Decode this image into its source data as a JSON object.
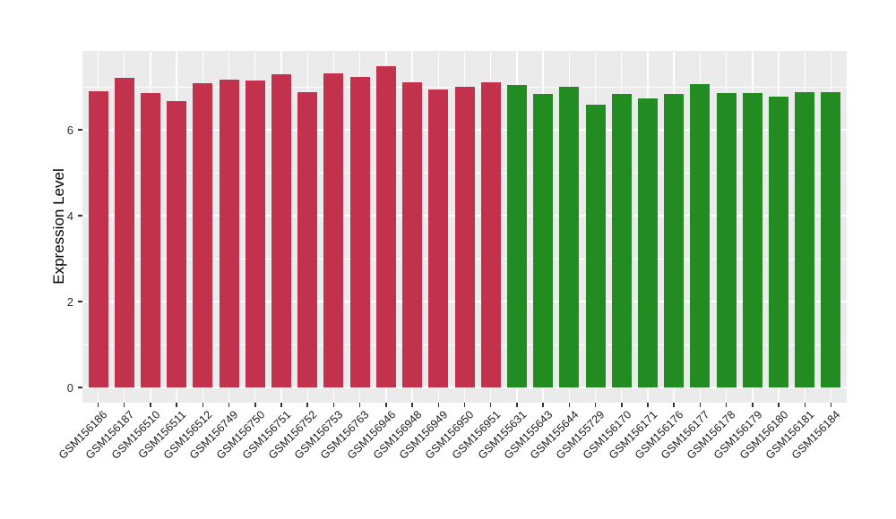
{
  "chart_data": {
    "type": "bar",
    "title": "",
    "xlabel": "",
    "ylabel": "Expression Level",
    "ylim": [
      0,
      7.9
    ],
    "yticks": [
      0,
      2,
      4,
      6
    ],
    "yticks_minor": [
      1,
      3,
      5,
      7
    ],
    "grid": true,
    "legend": "none",
    "categories": [
      "GSM156186",
      "GSM156187",
      "GSM156510",
      "GSM156511",
      "GSM156512",
      "GSM156749",
      "GSM156750",
      "GSM156751",
      "GSM156752",
      "GSM156753",
      "GSM156763",
      "GSM156946",
      "GSM156948",
      "GSM156949",
      "GSM156950",
      "GSM156951",
      "GSM155631",
      "GSM155643",
      "GSM155644",
      "GSM155729",
      "GSM156170",
      "GSM156171",
      "GSM156176",
      "GSM156177",
      "GSM156178",
      "GSM156179",
      "GSM156180",
      "GSM156181",
      "GSM156184"
    ],
    "values": [
      6.9,
      7.21,
      6.85,
      6.67,
      7.08,
      7.17,
      7.15,
      7.29,
      6.88,
      7.32,
      7.23,
      7.47,
      7.1,
      6.94,
      6.99,
      7.11,
      7.04,
      6.83,
      7.01,
      6.59,
      6.83,
      6.73,
      6.83,
      7.06,
      6.85,
      6.85,
      6.78,
      6.87,
      6.87
    ],
    "bar_groups": [
      "red",
      "red",
      "red",
      "red",
      "red",
      "red",
      "red",
      "red",
      "red",
      "red",
      "red",
      "red",
      "red",
      "red",
      "red",
      "red",
      "green",
      "green",
      "green",
      "green",
      "green",
      "green",
      "green",
      "green",
      "green",
      "green",
      "green",
      "green",
      "green"
    ],
    "palette": {
      "red": "#c2324d",
      "green": "#228b22"
    },
    "style": {
      "panel_bg": "#ebebeb",
      "grid_color": "#ffffff",
      "axis_text_color": "#303030",
      "background": "#ffffff"
    }
  }
}
